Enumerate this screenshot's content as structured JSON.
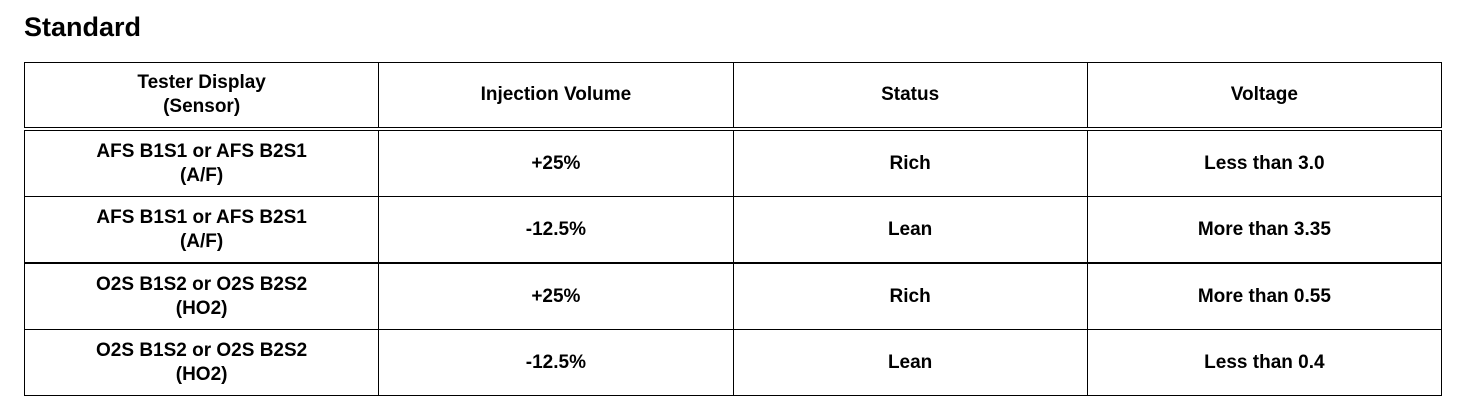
{
  "title": "Standard",
  "table": {
    "header": [
      [
        "Tester Display",
        "(Sensor)"
      ],
      [
        "Injection Volume"
      ],
      [
        "Status"
      ],
      [
        "Voltage"
      ]
    ],
    "rows": [
      [
        [
          "AFS B1S1 or AFS B2S1",
          "(A/F)"
        ],
        [
          "+25%"
        ],
        [
          "Rich"
        ],
        [
          "Less than 3.0"
        ]
      ],
      [
        [
          "AFS B1S1 or AFS B2S1",
          "(A/F)"
        ],
        [
          "-12.5%"
        ],
        [
          "Lean"
        ],
        [
          "More than 3.35"
        ]
      ],
      [
        [
          "O2S B1S2 or O2S B2S2",
          "(HO2)"
        ],
        [
          "+25%"
        ],
        [
          "Rich"
        ],
        [
          "More than 0.55"
        ]
      ],
      [
        [
          "O2S B1S2 or O2S B2S2",
          "(HO2)"
        ],
        [
          "-12.5%"
        ],
        [
          "Lean"
        ],
        [
          "Less than 0.4"
        ]
      ]
    ]
  }
}
